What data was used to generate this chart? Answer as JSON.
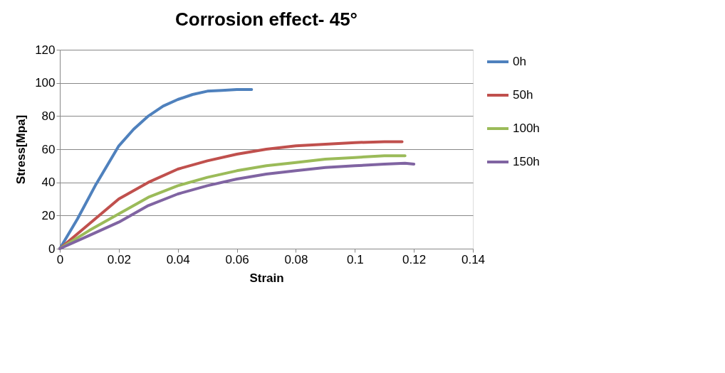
{
  "chart_data": {
    "type": "line",
    "title": "Corrosion effect- 45°",
    "xlabel": "Strain",
    "ylabel": "Stress[Mpa]",
    "xlim": [
      0,
      0.14
    ],
    "xticks": [
      0,
      0.02,
      0.04,
      0.06,
      0.08,
      0.1,
      0.12,
      0.14
    ],
    "ylim": [
      0,
      120
    ],
    "yticks": [
      0,
      20,
      40,
      60,
      80,
      100,
      120
    ],
    "grid": "y",
    "legend": "right",
    "marker": "none",
    "line_style": "solid",
    "series": [
      {
        "name": "0h",
        "color": "#4f81bd",
        "x": [
          0,
          0.006,
          0.012,
          0.02,
          0.025,
          0.03,
          0.035,
          0.04,
          0.045,
          0.05,
          0.055,
          0.06,
          0.065
        ],
        "values": [
          0,
          18,
          38,
          62,
          72,
          80,
          86,
          90,
          93,
          95,
          95.5,
          96,
          96
        ]
      },
      {
        "name": "50h",
        "color": "#c0504d",
        "x": [
          0,
          0.01,
          0.02,
          0.03,
          0.04,
          0.05,
          0.06,
          0.07,
          0.08,
          0.09,
          0.1,
          0.11,
          0.116
        ],
        "values": [
          0,
          15,
          30,
          40,
          48,
          53,
          57,
          60,
          62,
          63,
          64,
          64.5,
          64.5
        ]
      },
      {
        "name": "100h",
        "color": "#9bbb59",
        "x": [
          0,
          0.01,
          0.02,
          0.03,
          0.04,
          0.05,
          0.06,
          0.07,
          0.08,
          0.09,
          0.1,
          0.11,
          0.117
        ],
        "values": [
          0,
          11,
          21,
          31,
          38,
          43,
          47,
          50,
          52,
          54,
          55,
          56,
          56
        ]
      },
      {
        "name": "150h",
        "color": "#8064a2",
        "x": [
          0,
          0.01,
          0.02,
          0.03,
          0.04,
          0.05,
          0.06,
          0.07,
          0.08,
          0.09,
          0.1,
          0.11,
          0.117,
          0.12
        ],
        "values": [
          0,
          8,
          16,
          26,
          33,
          38,
          42,
          45,
          47,
          49,
          50,
          51,
          51.5,
          51
        ]
      }
    ]
  }
}
